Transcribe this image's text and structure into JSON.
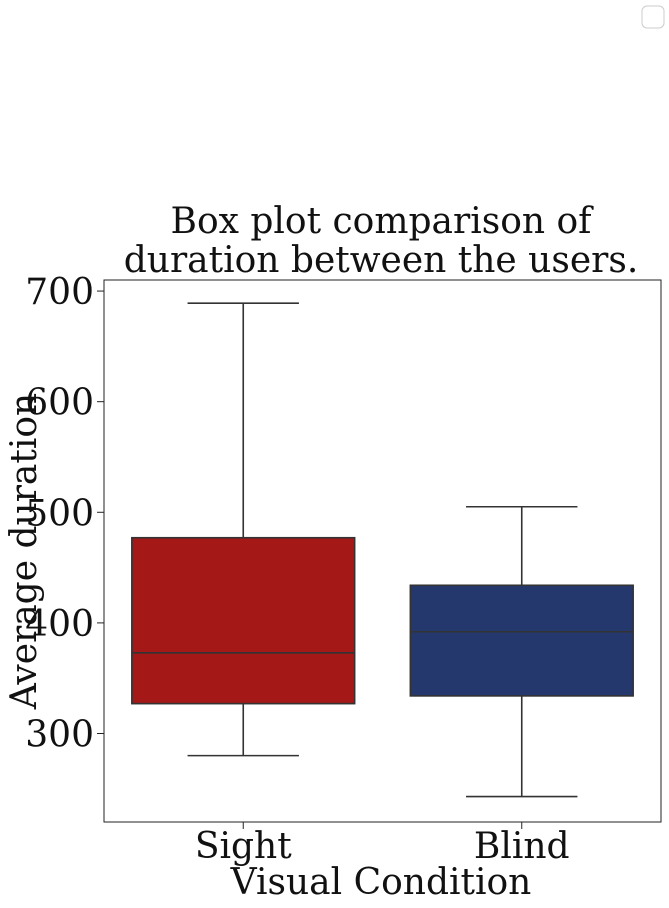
{
  "chart_data": {
    "type": "box",
    "title_lines": [
      "Box plot comparison of",
      "duration between the users."
    ],
    "xlabel": "Visual Condition",
    "ylabel": "Average duration",
    "ylim": [
      220,
      710
    ],
    "yticks": [
      300,
      400,
      500,
      600,
      700
    ],
    "categories": [
      "Sight",
      "Blind"
    ],
    "series": [
      {
        "category": "Sight",
        "whisker_low": 280,
        "q1": 327,
        "median": 373,
        "q3": 477,
        "whisker_high": 689,
        "color": "#a51818"
      },
      {
        "category": "Blind",
        "whisker_low": 243,
        "q1": 334,
        "median": 392,
        "q3": 434,
        "whisker_high": 505,
        "color": "#24386e"
      }
    ],
    "legend": {
      "position": "top-right",
      "entries": []
    }
  }
}
